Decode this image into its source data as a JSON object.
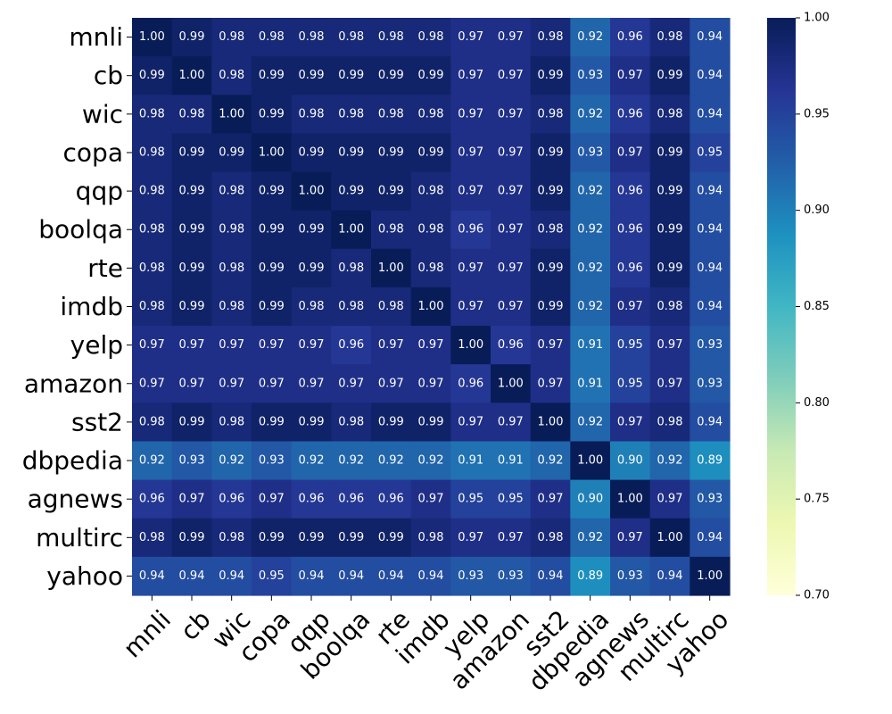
{
  "chart_data": {
    "type": "heatmap",
    "title": "",
    "xlabel": "",
    "ylabel": "",
    "rows": [
      "mnli",
      "cb",
      "wic",
      "copa",
      "qqp",
      "boolqa",
      "rte",
      "imdb",
      "yelp",
      "amazon",
      "sst2",
      "dbpedia",
      "agnews",
      "multirc",
      "yahoo"
    ],
    "columns": [
      "mnli",
      "cb",
      "wic",
      "copa",
      "qqp",
      "boolqa",
      "rte",
      "imdb",
      "yelp",
      "amazon",
      "sst2",
      "dbpedia",
      "agnews",
      "multirc",
      "yahoo"
    ],
    "values": [
      [
        1.0,
        0.99,
        0.98,
        0.98,
        0.98,
        0.98,
        0.98,
        0.98,
        0.97,
        0.97,
        0.98,
        0.92,
        0.96,
        0.98,
        0.94
      ],
      [
        0.99,
        1.0,
        0.98,
        0.99,
        0.99,
        0.99,
        0.99,
        0.99,
        0.97,
        0.97,
        0.99,
        0.93,
        0.97,
        0.99,
        0.94
      ],
      [
        0.98,
        0.98,
        1.0,
        0.99,
        0.98,
        0.98,
        0.98,
        0.98,
        0.97,
        0.97,
        0.98,
        0.92,
        0.96,
        0.98,
        0.94
      ],
      [
        0.98,
        0.99,
        0.99,
        1.0,
        0.99,
        0.99,
        0.99,
        0.99,
        0.97,
        0.97,
        0.99,
        0.93,
        0.97,
        0.99,
        0.95
      ],
      [
        0.98,
        0.99,
        0.98,
        0.99,
        1.0,
        0.99,
        0.99,
        0.98,
        0.97,
        0.97,
        0.99,
        0.92,
        0.96,
        0.99,
        0.94
      ],
      [
        0.98,
        0.99,
        0.98,
        0.99,
        0.99,
        1.0,
        0.98,
        0.98,
        0.96,
        0.97,
        0.98,
        0.92,
        0.96,
        0.99,
        0.94
      ],
      [
        0.98,
        0.99,
        0.98,
        0.99,
        0.99,
        0.98,
        1.0,
        0.98,
        0.97,
        0.97,
        0.99,
        0.92,
        0.96,
        0.99,
        0.94
      ],
      [
        0.98,
        0.99,
        0.98,
        0.99,
        0.98,
        0.98,
        0.98,
        1.0,
        0.97,
        0.97,
        0.99,
        0.92,
        0.97,
        0.98,
        0.94
      ],
      [
        0.97,
        0.97,
        0.97,
        0.97,
        0.97,
        0.96,
        0.97,
        0.97,
        1.0,
        0.96,
        0.97,
        0.91,
        0.95,
        0.97,
        0.93
      ],
      [
        0.97,
        0.97,
        0.97,
        0.97,
        0.97,
        0.97,
        0.97,
        0.97,
        0.96,
        1.0,
        0.97,
        0.91,
        0.95,
        0.97,
        0.93
      ],
      [
        0.98,
        0.99,
        0.98,
        0.99,
        0.99,
        0.98,
        0.99,
        0.99,
        0.97,
        0.97,
        1.0,
        0.92,
        0.97,
        0.98,
        0.94
      ],
      [
        0.92,
        0.93,
        0.92,
        0.93,
        0.92,
        0.92,
        0.92,
        0.92,
        0.91,
        0.91,
        0.92,
        1.0,
        0.9,
        0.92,
        0.89
      ],
      [
        0.96,
        0.97,
        0.96,
        0.97,
        0.96,
        0.96,
        0.96,
        0.97,
        0.95,
        0.95,
        0.97,
        0.9,
        1.0,
        0.97,
        0.93
      ],
      [
        0.98,
        0.99,
        0.98,
        0.99,
        0.99,
        0.99,
        0.99,
        0.98,
        0.97,
        0.97,
        0.98,
        0.92,
        0.97,
        1.0,
        0.94
      ],
      [
        0.94,
        0.94,
        0.94,
        0.95,
        0.94,
        0.94,
        0.94,
        0.94,
        0.93,
        0.93,
        0.94,
        0.89,
        0.93,
        0.94,
        1.0
      ]
    ],
    "colormap": "YlGnBu",
    "colormap_stops": [
      "#ffffd9",
      "#edf8b1",
      "#c7e9b4",
      "#7fcdbb",
      "#41b6c4",
      "#1d91c0",
      "#225ea8",
      "#253494",
      "#081d58"
    ],
    "vmin": 0.7,
    "vmax": 1.0,
    "colorbar_ticks": [
      0.7,
      0.75,
      0.8,
      0.85,
      0.9,
      0.95,
      1.0
    ],
    "colorbar_tick_labels": [
      "0.70",
      "0.75",
      "0.80",
      "0.85",
      "0.90",
      "0.95",
      "1.00"
    ],
    "annotation_format": "2 decimals",
    "grid": false,
    "legend": "colorbar-right"
  }
}
